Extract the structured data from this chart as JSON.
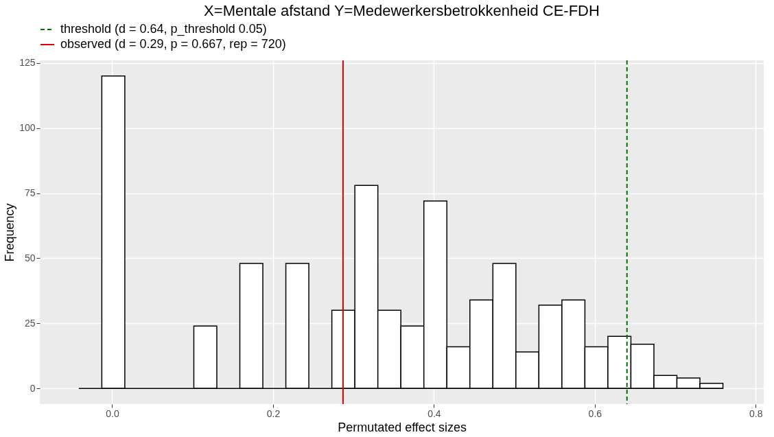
{
  "chart_data": {
    "type": "histogram",
    "title": "X=Mentale afstand  Y=Medewerkersbetrokkenheid  CE-FDH",
    "xlabel": "Permutated effect sizes",
    "ylabel": "Frequency",
    "bins": [
      -0.0415,
      -0.0129,
      0.0157,
      0.0443,
      0.0729,
      0.1015,
      0.1301,
      0.1587,
      0.1873,
      0.2159,
      0.2445,
      0.2731,
      0.3017,
      0.3303,
      0.3589,
      0.3875,
      0.4161,
      0.4447,
      0.4733,
      0.5019,
      0.5305,
      0.5591,
      0.5877,
      0.6163,
      0.6449,
      0.6735,
      0.7021,
      0.7307,
      0.7593
    ],
    "values": [
      0,
      120,
      0,
      0,
      0,
      24,
      0,
      48,
      0,
      48,
      0,
      30,
      78,
      30,
      24,
      72,
      16,
      34,
      48,
      14,
      32,
      34,
      16,
      20,
      17,
      5,
      4,
      2
    ],
    "color": "#ffffff",
    "xlim": [
      -0.09,
      0.81
    ],
    "ylim": [
      -6,
      126
    ],
    "xticks": [
      {
        "value": 0,
        "label": "0.0"
      },
      {
        "value": 0.2,
        "label": "0.2"
      },
      {
        "value": 0.4,
        "label": "0.4"
      },
      {
        "value": 0.6,
        "label": "0.6"
      },
      {
        "value": 0.8,
        "label": "0.8"
      }
    ],
    "yticks": [
      0,
      25,
      50,
      75,
      100,
      125
    ],
    "ref_lines": [
      {
        "axis": "x",
        "value": 0.64,
        "label": "threshold (d = 0.64, p_threshold 0.05)",
        "color": "#007000",
        "line_style": "dashed"
      },
      {
        "axis": "x",
        "value": 0.287,
        "label": "observed (d = 0.29, p = 0.667, rep = 720)",
        "color": "#e00000",
        "line_style": "solid"
      }
    ],
    "grid": true,
    "legend": "top"
  }
}
